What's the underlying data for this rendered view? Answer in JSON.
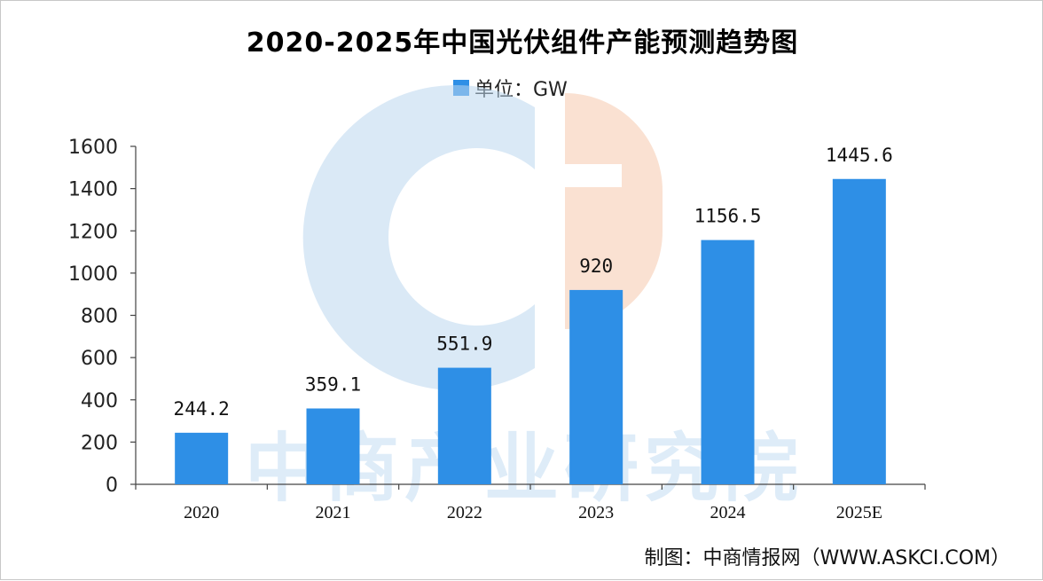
{
  "chart_data": {
    "type": "bar",
    "title": "2020-2025年中国光伏组件产能预测趋势图",
    "legend": "单位：GW",
    "categories": [
      "2020",
      "2021",
      "2022",
      "2023",
      "2024",
      "2025E"
    ],
    "values": [
      244.2,
      359.1,
      551.9,
      920,
      1156.5,
      1445.6
    ],
    "value_labels": [
      "244.2",
      "359.1",
      "551.9",
      "920",
      "1156.5",
      "1445.6"
    ],
    "y_ticks": [
      0,
      200,
      400,
      600,
      800,
      1000,
      1200,
      1400,
      1600
    ],
    "ylim": [
      0,
      1600
    ],
    "grid": false,
    "legend_position": "top-center",
    "bar_color": "#2E8FE6"
  },
  "watermark": "中商产业研究院",
  "source": "制图：中商情报网（WWW.ASKCI.COM）"
}
